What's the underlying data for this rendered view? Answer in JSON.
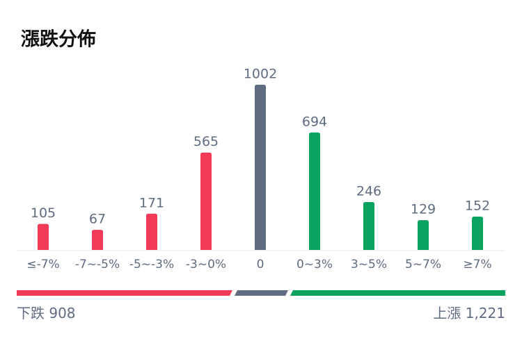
{
  "chart_data": {
    "type": "bar",
    "title": "漲跌分佈",
    "categories": [
      "≤-7%",
      "-7~-5%",
      "-5~-3%",
      "-3~0%",
      "0",
      "0~3%",
      "3~5%",
      "5~7%",
      "≥7%"
    ],
    "values": [
      105,
      67,
      171,
      565,
      1002,
      694,
      246,
      129,
      152
    ],
    "colors": [
      "#f03a58",
      "#f03a58",
      "#f03a58",
      "#f03a58",
      "#5f6b80",
      "#07a35f",
      "#07a35f",
      "#07a35f",
      "#07a35f"
    ]
  },
  "summary": {
    "down": {
      "label": "下跌",
      "value": 908
    },
    "up": {
      "label": "上漲",
      "value": 1221,
      "value_label": "1,221"
    }
  }
}
